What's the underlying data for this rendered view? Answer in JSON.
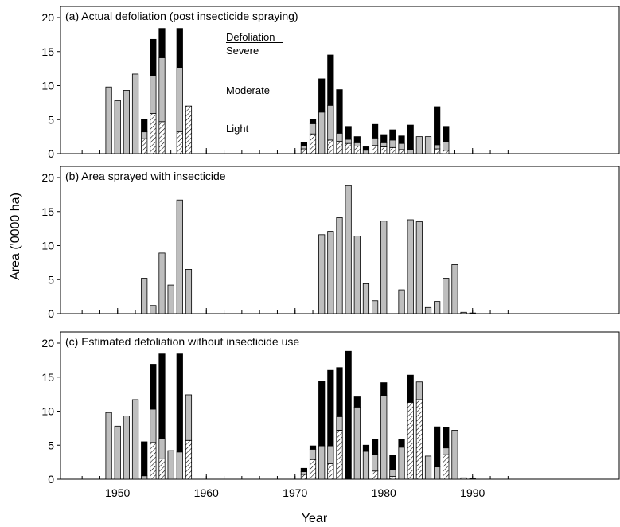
{
  "chart_data": {
    "type": "bar",
    "stacked": true,
    "xlabel": "Year",
    "ylabel": "Area ('0000 ha)",
    "xlim": [
      1945,
      1995
    ],
    "ylim": [
      0,
      20
    ],
    "x_ticks_major": [
      1950,
      1960,
      1970,
      1980,
      1990
    ],
    "y_ticks": [
      0,
      5,
      10,
      15,
      20
    ],
    "legend": {
      "heading": "Defoliation",
      "entries": [
        "Severe",
        "Moderate",
        "Light"
      ],
      "placement": "inside panel (a), left of center"
    },
    "colors": {
      "severe": "#000000",
      "moderate": "#bebebe",
      "light": "#ffffff",
      "edge": "#000000"
    },
    "panels": [
      {
        "title": "(a)  Actual defoliation (post insecticide spraying)",
        "bars": [
          {
            "year": 1949,
            "light": 0,
            "moderate": 9.8,
            "severe": 0
          },
          {
            "year": 1950,
            "light": 0,
            "moderate": 7.8,
            "severe": 0
          },
          {
            "year": 1951,
            "light": 0,
            "moderate": 9.3,
            "severe": 0
          },
          {
            "year": 1952,
            "light": 0,
            "moderate": 11.7,
            "severe": 0
          },
          {
            "year": 1953,
            "light": 2.2,
            "moderate": 1.0,
            "severe": 1.8
          },
          {
            "year": 1954,
            "light": 5.9,
            "moderate": 5.5,
            "severe": 5.4
          },
          {
            "year": 1955,
            "light": 4.7,
            "moderate": 9.4,
            "severe": 4.3
          },
          {
            "year": 1957,
            "light": 3.2,
            "moderate": 9.4,
            "severe": 5.8
          },
          {
            "year": 1958,
            "light": 7.0,
            "moderate": 0,
            "severe": 0
          },
          {
            "year": 1971,
            "light": 0.7,
            "moderate": 0.4,
            "severe": 0.5
          },
          {
            "year": 1972,
            "light": 2.9,
            "moderate": 1.5,
            "severe": 0.6
          },
          {
            "year": 1973,
            "light": 0,
            "moderate": 6.1,
            "severe": 4.9
          },
          {
            "year": 1974,
            "light": 2.0,
            "moderate": 5.1,
            "severe": 7.4
          },
          {
            "year": 1975,
            "light": 1.8,
            "moderate": 1.2,
            "severe": 6.4
          },
          {
            "year": 1976,
            "light": 1.5,
            "moderate": 0.6,
            "severe": 1.9
          },
          {
            "year": 1977,
            "light": 1.1,
            "moderate": 0.5,
            "severe": 0.9
          },
          {
            "year": 1978,
            "light": 0,
            "moderate": 0.5,
            "severe": 0.5
          },
          {
            "year": 1979,
            "light": 1.2,
            "moderate": 1.1,
            "severe": 2.0
          },
          {
            "year": 1980,
            "light": 1.0,
            "moderate": 0.6,
            "severe": 1.2
          },
          {
            "year": 1981,
            "light": 0.9,
            "moderate": 1.1,
            "severe": 1.5
          },
          {
            "year": 1982,
            "light": 0.6,
            "moderate": 0.9,
            "severe": 1.1
          },
          {
            "year": 1983,
            "light": 0,
            "moderate": 0.6,
            "severe": 3.6
          },
          {
            "year": 1984,
            "light": 0,
            "moderate": 2.5,
            "severe": 0
          },
          {
            "year": 1985,
            "light": 0,
            "moderate": 2.5,
            "severe": 0
          },
          {
            "year": 1986,
            "light": 0.7,
            "moderate": 0.6,
            "severe": 5.6
          },
          {
            "year": 1987,
            "light": 0.5,
            "moderate": 1.2,
            "severe": 2.3
          }
        ]
      },
      {
        "title": "(b)  Area sprayed with insecticide",
        "bars": [
          {
            "year": 1953,
            "light": 0,
            "moderate": 5.2,
            "severe": 0
          },
          {
            "year": 1954,
            "light": 0,
            "moderate": 1.2,
            "severe": 0
          },
          {
            "year": 1955,
            "light": 0,
            "moderate": 8.9,
            "severe": 0
          },
          {
            "year": 1956,
            "light": 0,
            "moderate": 4.2,
            "severe": 0
          },
          {
            "year": 1957,
            "light": 0,
            "moderate": 16.7,
            "severe": 0
          },
          {
            "year": 1958,
            "light": 0,
            "moderate": 6.5,
            "severe": 0
          },
          {
            "year": 1973,
            "light": 0,
            "moderate": 11.6,
            "severe": 0
          },
          {
            "year": 1974,
            "light": 0,
            "moderate": 12.1,
            "severe": 0
          },
          {
            "year": 1975,
            "light": 0,
            "moderate": 14.1,
            "severe": 0
          },
          {
            "year": 1976,
            "light": 0,
            "moderate": 18.8,
            "severe": 0
          },
          {
            "year": 1977,
            "light": 0,
            "moderate": 11.4,
            "severe": 0
          },
          {
            "year": 1978,
            "light": 0,
            "moderate": 4.4,
            "severe": 0
          },
          {
            "year": 1979,
            "light": 0,
            "moderate": 1.9,
            "severe": 0
          },
          {
            "year": 1980,
            "light": 0,
            "moderate": 13.6,
            "severe": 0
          },
          {
            "year": 1982,
            "light": 0,
            "moderate": 3.5,
            "severe": 0
          },
          {
            "year": 1983,
            "light": 0,
            "moderate": 13.8,
            "severe": 0
          },
          {
            "year": 1984,
            "light": 0,
            "moderate": 13.5,
            "severe": 0
          },
          {
            "year": 1985,
            "light": 0,
            "moderate": 0.9,
            "severe": 0
          },
          {
            "year": 1986,
            "light": 0,
            "moderate": 1.8,
            "severe": 0
          },
          {
            "year": 1987,
            "light": 0,
            "moderate": 5.2,
            "severe": 0
          },
          {
            "year": 1988,
            "light": 0,
            "moderate": 7.2,
            "severe": 0
          },
          {
            "year": 1989,
            "light": 0,
            "moderate": 0.2,
            "severe": 0
          },
          {
            "year": 1990,
            "light": 0,
            "moderate": 0.1,
            "severe": 0
          }
        ]
      },
      {
        "title": "(c)  Estimated defoliation without insecticide use",
        "bars": [
          {
            "year": 1949,
            "light": 0,
            "moderate": 9.8,
            "severe": 0
          },
          {
            "year": 1950,
            "light": 0,
            "moderate": 7.8,
            "severe": 0
          },
          {
            "year": 1951,
            "light": 0,
            "moderate": 9.3,
            "severe": 0
          },
          {
            "year": 1952,
            "light": 0,
            "moderate": 11.7,
            "severe": 0
          },
          {
            "year": 1953,
            "light": 0,
            "moderate": 0.5,
            "severe": 5.0
          },
          {
            "year": 1954,
            "light": 5.4,
            "moderate": 4.9,
            "severe": 6.6
          },
          {
            "year": 1955,
            "light": 3.0,
            "moderate": 3.0,
            "severe": 12.4
          },
          {
            "year": 1956,
            "light": 0,
            "moderate": 4.2,
            "severe": 0
          },
          {
            "year": 1957,
            "light": 0,
            "moderate": 4.0,
            "severe": 14.4
          },
          {
            "year": 1958,
            "light": 5.7,
            "moderate": 6.7,
            "severe": 0
          },
          {
            "year": 1971,
            "light": 0.7,
            "moderate": 0.4,
            "severe": 0.5
          },
          {
            "year": 1972,
            "light": 2.9,
            "moderate": 1.5,
            "severe": 0.5
          },
          {
            "year": 1973,
            "light": 0,
            "moderate": 4.9,
            "severe": 9.5
          },
          {
            "year": 1974,
            "light": 2.3,
            "moderate": 2.6,
            "severe": 11.1
          },
          {
            "year": 1975,
            "light": 7.2,
            "moderate": 2.0,
            "severe": 7.2
          },
          {
            "year": 1976,
            "light": 0,
            "moderate": 0,
            "severe": 18.8
          },
          {
            "year": 1977,
            "light": 0,
            "moderate": 10.6,
            "severe": 1.5
          },
          {
            "year": 1978,
            "light": 0,
            "moderate": 4.1,
            "severe": 0.9
          },
          {
            "year": 1979,
            "light": 1.2,
            "moderate": 2.4,
            "severe": 2.2
          },
          {
            "year": 1980,
            "light": 0,
            "moderate": 12.3,
            "severe": 1.9
          },
          {
            "year": 1981,
            "light": 0.4,
            "moderate": 1.0,
            "severe": 2.1
          },
          {
            "year": 1982,
            "light": 0,
            "moderate": 4.7,
            "severe": 1.1
          },
          {
            "year": 1983,
            "light": 11.3,
            "moderate": 0,
            "severe": 4.0
          },
          {
            "year": 1984,
            "light": 11.7,
            "moderate": 2.6,
            "severe": 0
          },
          {
            "year": 1985,
            "light": 0,
            "moderate": 3.4,
            "severe": 0
          },
          {
            "year": 1986,
            "light": 0,
            "moderate": 1.8,
            "severe": 5.9
          },
          {
            "year": 1987,
            "light": 3.6,
            "moderate": 1.0,
            "severe": 3.0
          },
          {
            "year": 1988,
            "light": 0,
            "moderate": 7.2,
            "severe": 0
          },
          {
            "year": 1989,
            "light": 0,
            "moderate": 0.2,
            "severe": 0
          },
          {
            "year": 1990,
            "light": 0,
            "moderate": 0.1,
            "severe": 0
          }
        ]
      }
    ]
  }
}
